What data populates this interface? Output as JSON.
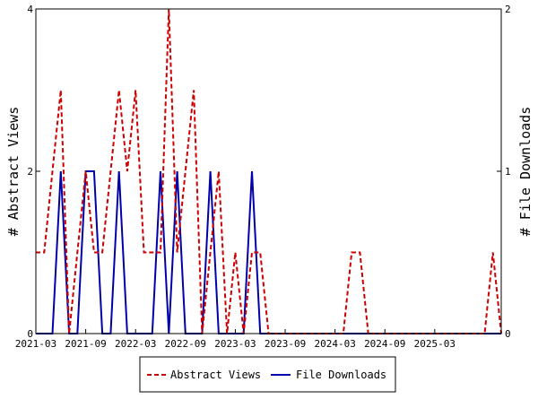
{
  "chart_data": {
    "type": "line",
    "x_tick_labels": [
      "2021-03",
      "2021-09",
      "2022-03",
      "2022-09",
      "2023-03",
      "2023-09",
      "2024-03",
      "2024-09",
      "2025-03"
    ],
    "ylabel_left": "# Abstract Views",
    "ylabel_right": "# File Downloads",
    "ylim_left": [
      0,
      4
    ],
    "ylim_right": [
      0,
      2
    ],
    "y_ticks_left": [
      "0",
      "2",
      "4"
    ],
    "y_ticks_right": [
      "0",
      "1",
      "2"
    ],
    "xlim": [
      "2021-03",
      "2025-11"
    ],
    "grid": false,
    "legend_position": "bottom",
    "series": [
      {
        "name": "Abstract Views",
        "axis": "left",
        "color": "#cc0000",
        "style": "dashed",
        "x": [
          "2021-03",
          "2021-04",
          "2021-05",
          "2021-06",
          "2021-07",
          "2021-08",
          "2021-09",
          "2021-10",
          "2021-11",
          "2021-12",
          "2022-01",
          "2022-02",
          "2022-03",
          "2022-04",
          "2022-05",
          "2022-06",
          "2022-07",
          "2022-08",
          "2022-09",
          "2022-10",
          "2022-11",
          "2022-12",
          "2023-01",
          "2023-02",
          "2023-03",
          "2023-04",
          "2023-05",
          "2023-06",
          "2023-07",
          "2023-08",
          "2023-09",
          "2023-10",
          "2023-11",
          "2023-12",
          "2024-01",
          "2024-02",
          "2024-03",
          "2024-04",
          "2024-05",
          "2024-06",
          "2024-07",
          "2024-08",
          "2024-09",
          "2024-10",
          "2024-11",
          "2024-12",
          "2025-01",
          "2025-02",
          "2025-03",
          "2025-04",
          "2025-05",
          "2025-06",
          "2025-07",
          "2025-08",
          "2025-09",
          "2025-10",
          "2025-11"
        ],
        "values": [
          1,
          1,
          2,
          3,
          0,
          1,
          2,
          1,
          1,
          2,
          3,
          2,
          3,
          1,
          1,
          1,
          4,
          1,
          2,
          3,
          0,
          1,
          2,
          0,
          1,
          0,
          1,
          1,
          0,
          0,
          0,
          0,
          0,
          0,
          0,
          0,
          0,
          0,
          1,
          1,
          0,
          0,
          0,
          0,
          0,
          0,
          0,
          0,
          0,
          0,
          0,
          0,
          0,
          0,
          0,
          1,
          0
        ]
      },
      {
        "name": "File Downloads",
        "axis": "right",
        "color": "#0000aa",
        "style": "solid",
        "x": [
          "2021-03",
          "2021-04",
          "2021-05",
          "2021-06",
          "2021-07",
          "2021-08",
          "2021-09",
          "2021-10",
          "2021-11",
          "2021-12",
          "2022-01",
          "2022-02",
          "2022-03",
          "2022-04",
          "2022-05",
          "2022-06",
          "2022-07",
          "2022-08",
          "2022-09",
          "2022-10",
          "2022-11",
          "2022-12",
          "2023-01",
          "2023-02",
          "2023-03",
          "2023-04",
          "2023-05",
          "2023-06",
          "2023-07",
          "2023-08",
          "2023-09",
          "2023-10",
          "2023-11",
          "2023-12",
          "2024-01",
          "2024-02",
          "2024-03",
          "2024-04",
          "2024-05",
          "2024-06",
          "2024-07",
          "2024-08",
          "2024-09",
          "2024-10",
          "2024-11",
          "2024-12",
          "2025-01",
          "2025-02",
          "2025-03",
          "2025-04",
          "2025-05",
          "2025-06",
          "2025-07",
          "2025-08",
          "2025-09",
          "2025-10",
          "2025-11"
        ],
        "values": [
          0,
          0,
          0,
          1,
          0,
          0,
          1,
          1,
          0,
          0,
          1,
          0,
          0,
          0,
          0,
          1,
          0,
          1,
          0,
          0,
          0,
          1,
          0,
          0,
          0,
          0,
          1,
          0,
          0,
          0,
          0,
          0,
          0,
          0,
          0,
          0,
          0,
          0,
          0,
          0,
          0,
          0,
          0,
          0,
          0,
          0,
          0,
          0,
          0,
          0,
          0,
          0,
          0,
          0,
          0,
          0,
          0
        ]
      }
    ]
  }
}
